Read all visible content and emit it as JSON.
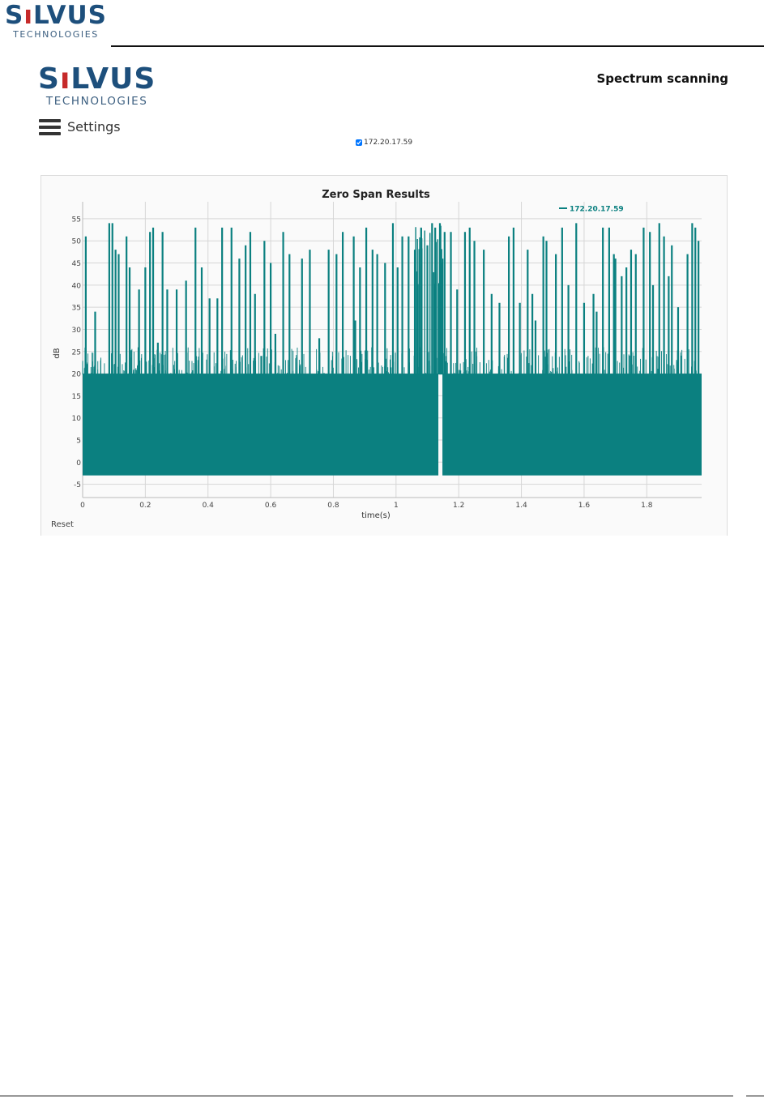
{
  "doc_header": {
    "logo_word_a": "S",
    "logo_word_b": "LVUS",
    "logo_sub": "TECHNOLOGIES"
  },
  "app": {
    "logo_word_a": "S",
    "logo_word_b": "LVUS",
    "logo_sub": "TECHNOLOGIES",
    "page_title": "Spectrum scanning",
    "settings_label": "Settings",
    "device_checkbox_checked": true,
    "device_label": "172.20.17.59",
    "reset_label": "Reset"
  },
  "colors": {
    "series": "#0b8080",
    "logo_blue": "#1d4f7c",
    "logo_signal": "#c62a2a"
  },
  "chart_data": {
    "type": "line",
    "title": "Zero Span Results",
    "xlabel": "time(s)",
    "ylabel": "dB",
    "x_ticks": [
      0,
      0.2,
      0.4,
      0.6,
      0.8,
      1,
      1.2,
      1.4,
      1.6,
      1.8
    ],
    "x_tick_labels": [
      "0",
      "0.2",
      "0.4",
      "0.6",
      "0.8",
      "1",
      "1.2",
      "1.4",
      "1.6",
      "1.8"
    ],
    "y_ticks": [
      -5,
      0,
      5,
      10,
      15,
      20,
      25,
      30,
      35,
      40,
      45,
      50,
      55
    ],
    "xlim": [
      0,
      1.975
    ],
    "ylim": [
      -8,
      57
    ],
    "grid": true,
    "legend_position": "top-right",
    "series": [
      {
        "name": "172.20.17.59",
        "noise_floor": -3,
        "noise_band_top": 20,
        "gap_x": [
          1.135,
          1.148
        ],
        "bursts": [
          {
            "x": 0.01,
            "y": 51
          },
          {
            "x": 0.04,
            "y": 34
          },
          {
            "x": 0.085,
            "y": 54
          },
          {
            "x": 0.095,
            "y": 54
          },
          {
            "x": 0.105,
            "y": 48
          },
          {
            "x": 0.115,
            "y": 47
          },
          {
            "x": 0.14,
            "y": 51
          },
          {
            "x": 0.15,
            "y": 44
          },
          {
            "x": 0.18,
            "y": 39
          },
          {
            "x": 0.2,
            "y": 44
          },
          {
            "x": 0.215,
            "y": 52
          },
          {
            "x": 0.225,
            "y": 53
          },
          {
            "x": 0.24,
            "y": 27
          },
          {
            "x": 0.255,
            "y": 52
          },
          {
            "x": 0.27,
            "y": 39
          },
          {
            "x": 0.3,
            "y": 39
          },
          {
            "x": 0.33,
            "y": 41
          },
          {
            "x": 0.36,
            "y": 53
          },
          {
            "x": 0.38,
            "y": 44
          },
          {
            "x": 0.405,
            "y": 37
          },
          {
            "x": 0.43,
            "y": 37
          },
          {
            "x": 0.445,
            "y": 53
          },
          {
            "x": 0.475,
            "y": 53
          },
          {
            "x": 0.5,
            "y": 46
          },
          {
            "x": 0.52,
            "y": 49
          },
          {
            "x": 0.535,
            "y": 52
          },
          {
            "x": 0.55,
            "y": 38
          },
          {
            "x": 0.57,
            "y": 24
          },
          {
            "x": 0.58,
            "y": 50
          },
          {
            "x": 0.6,
            "y": 45
          },
          {
            "x": 0.615,
            "y": 29
          },
          {
            "x": 0.64,
            "y": 52
          },
          {
            "x": 0.66,
            "y": 47
          },
          {
            "x": 0.7,
            "y": 46
          },
          {
            "x": 0.725,
            "y": 48
          },
          {
            "x": 0.755,
            "y": 28
          },
          {
            "x": 0.785,
            "y": 48
          },
          {
            "x": 0.81,
            "y": 47
          },
          {
            "x": 0.83,
            "y": 52
          },
          {
            "x": 0.865,
            "y": 51
          },
          {
            "x": 0.87,
            "y": 32
          },
          {
            "x": 0.885,
            "y": 44
          },
          {
            "x": 0.905,
            "y": 53
          },
          {
            "x": 0.925,
            "y": 48
          },
          {
            "x": 0.94,
            "y": 47
          },
          {
            "x": 0.965,
            "y": 45
          },
          {
            "x": 0.99,
            "y": 54
          },
          {
            "x": 1.005,
            "y": 44
          },
          {
            "x": 1.02,
            "y": 51
          },
          {
            "x": 1.04,
            "y": 51
          },
          {
            "x": 1.06,
            "y": 48
          },
          {
            "x": 1.08,
            "y": 53
          },
          {
            "x": 1.1,
            "y": 49
          },
          {
            "x": 1.115,
            "y": 54
          },
          {
            "x": 1.125,
            "y": 53
          },
          {
            "x": 1.14,
            "y": 54
          },
          {
            "x": 1.155,
            "y": 52
          },
          {
            "x": 1.175,
            "y": 52
          },
          {
            "x": 1.195,
            "y": 39
          },
          {
            "x": 1.22,
            "y": 52
          },
          {
            "x": 1.235,
            "y": 53
          },
          {
            "x": 1.25,
            "y": 50
          },
          {
            "x": 1.28,
            "y": 48
          },
          {
            "x": 1.305,
            "y": 38
          },
          {
            "x": 1.33,
            "y": 36
          },
          {
            "x": 1.36,
            "y": 51
          },
          {
            "x": 1.375,
            "y": 53
          },
          {
            "x": 1.395,
            "y": 36
          },
          {
            "x": 1.42,
            "y": 48
          },
          {
            "x": 1.435,
            "y": 38
          },
          {
            "x": 1.445,
            "y": 32
          },
          {
            "x": 1.47,
            "y": 51
          },
          {
            "x": 1.48,
            "y": 50
          },
          {
            "x": 1.51,
            "y": 47
          },
          {
            "x": 1.53,
            "y": 53
          },
          {
            "x": 1.55,
            "y": 40
          },
          {
            "x": 1.575,
            "y": 54
          },
          {
            "x": 1.6,
            "y": 36
          },
          {
            "x": 1.63,
            "y": 38
          },
          {
            "x": 1.64,
            "y": 34
          },
          {
            "x": 1.66,
            "y": 53
          },
          {
            "x": 1.68,
            "y": 53
          },
          {
            "x": 1.695,
            "y": 47
          },
          {
            "x": 1.7,
            "y": 46
          },
          {
            "x": 1.72,
            "y": 42
          },
          {
            "x": 1.735,
            "y": 44
          },
          {
            "x": 1.75,
            "y": 48
          },
          {
            "x": 1.765,
            "y": 47
          },
          {
            "x": 1.79,
            "y": 53
          },
          {
            "x": 1.81,
            "y": 52
          },
          {
            "x": 1.82,
            "y": 40
          },
          {
            "x": 1.84,
            "y": 54
          },
          {
            "x": 1.855,
            "y": 51
          },
          {
            "x": 1.87,
            "y": 42
          },
          {
            "x": 1.88,
            "y": 49
          },
          {
            "x": 1.9,
            "y": 35
          },
          {
            "x": 1.93,
            "y": 47
          },
          {
            "x": 1.945,
            "y": 54
          },
          {
            "x": 1.955,
            "y": 53
          },
          {
            "x": 1.965,
            "y": 50
          }
        ]
      }
    ]
  }
}
